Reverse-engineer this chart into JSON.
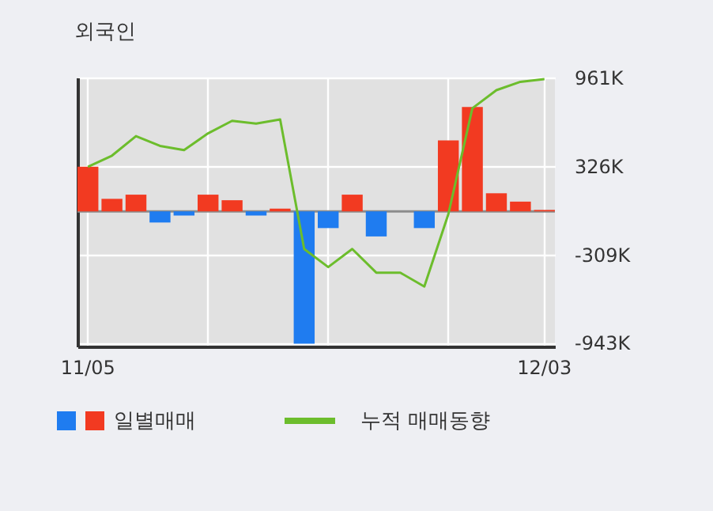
{
  "chart_data": {
    "type": "bar",
    "title": "외국인",
    "categories": [
      "11/05",
      null,
      null,
      null,
      null,
      null,
      null,
      null,
      null,
      null,
      null,
      null,
      null,
      null,
      null,
      null,
      null,
      null,
      null,
      "12/03"
    ],
    "series": [
      {
        "name": "일별매매",
        "values": [
          320,
          90,
          120,
          -80,
          -30,
          120,
          80,
          -30,
          20,
          -950,
          -120,
          120,
          -180,
          0,
          -120,
          510,
          750,
          130,
          70,
          10
        ],
        "colors": [
          "#f23a21",
          "#f23a21",
          "#f23a21",
          "#1f7cf0",
          "#1f7cf0",
          "#f23a21",
          "#f23a21",
          "#1f7cf0",
          "#f23a21",
          "#1f7cf0",
          "#1f7cf0",
          "#f23a21",
          "#1f7cf0",
          "#f23a21",
          "#1f7cf0",
          "#f23a21",
          "#f23a21",
          "#f23a21",
          "#f23a21",
          "#f23a21"
        ]
      },
      {
        "name": "누적 매매동향",
        "type": "line",
        "color": "#6cbd2c",
        "values": [
          320,
          400,
          540,
          470,
          440,
          560,
          650,
          630,
          660,
          -270,
          -400,
          -270,
          -440,
          -440,
          -540,
          -20,
          740,
          870,
          930,
          950
        ]
      }
    ],
    "ylim": [
      -970,
      961
    ],
    "yticks": [
      {
        "value": 961,
        "label": "961K"
      },
      {
        "value": 326,
        "label": "326K"
      },
      {
        "value": -309,
        "label": "-309K"
      },
      {
        "value": -943,
        "label": "-943K"
      }
    ],
    "ref_lines": [
      {
        "axis": "y",
        "value": 0,
        "color": "#8c8c8c"
      }
    ],
    "grid": true,
    "legend": "bottom"
  }
}
